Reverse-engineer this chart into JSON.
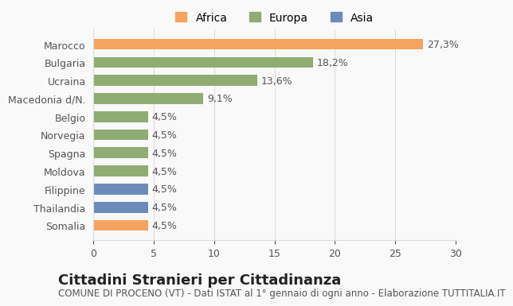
{
  "categories": [
    "Somalia",
    "Thailandia",
    "Filippine",
    "Moldova",
    "Spagna",
    "Norvegia",
    "Belgio",
    "Macedonia d/N.",
    "Ucraina",
    "Bulgaria",
    "Marocco"
  ],
  "values": [
    4.5,
    4.5,
    4.5,
    4.5,
    4.5,
    4.5,
    4.5,
    9.1,
    13.6,
    18.2,
    27.3
  ],
  "labels": [
    "4,5%",
    "4,5%",
    "4,5%",
    "4,5%",
    "4,5%",
    "4,5%",
    "4,5%",
    "9,1%",
    "13,6%",
    "18,2%",
    "27,3%"
  ],
  "colors": [
    "#f4a460",
    "#6b8cba",
    "#6b8cba",
    "#8fac72",
    "#8fac72",
    "#8fac72",
    "#8fac72",
    "#8fac72",
    "#8fac72",
    "#8fac72",
    "#f4a460"
  ],
  "legend_labels": [
    "Africa",
    "Europa",
    "Asia"
  ],
  "legend_colors": [
    "#f4a460",
    "#8fac72",
    "#6b8cba"
  ],
  "title": "Cittadini Stranieri per Cittadinanza",
  "subtitle": "COMUNE DI PROCENO (VT) - Dati ISTAT al 1° gennaio di ogni anno - Elaborazione TUTTITALIA.IT",
  "xlim": [
    0,
    30
  ],
  "xticks": [
    0,
    5,
    10,
    15,
    20,
    25,
    30
  ],
  "bg_color": "#f9f9f9",
  "bar_bg_color": "#f9f9f9",
  "grid_color": "#dddddd",
  "title_fontsize": 13,
  "subtitle_fontsize": 8.5,
  "label_fontsize": 9,
  "tick_fontsize": 9
}
